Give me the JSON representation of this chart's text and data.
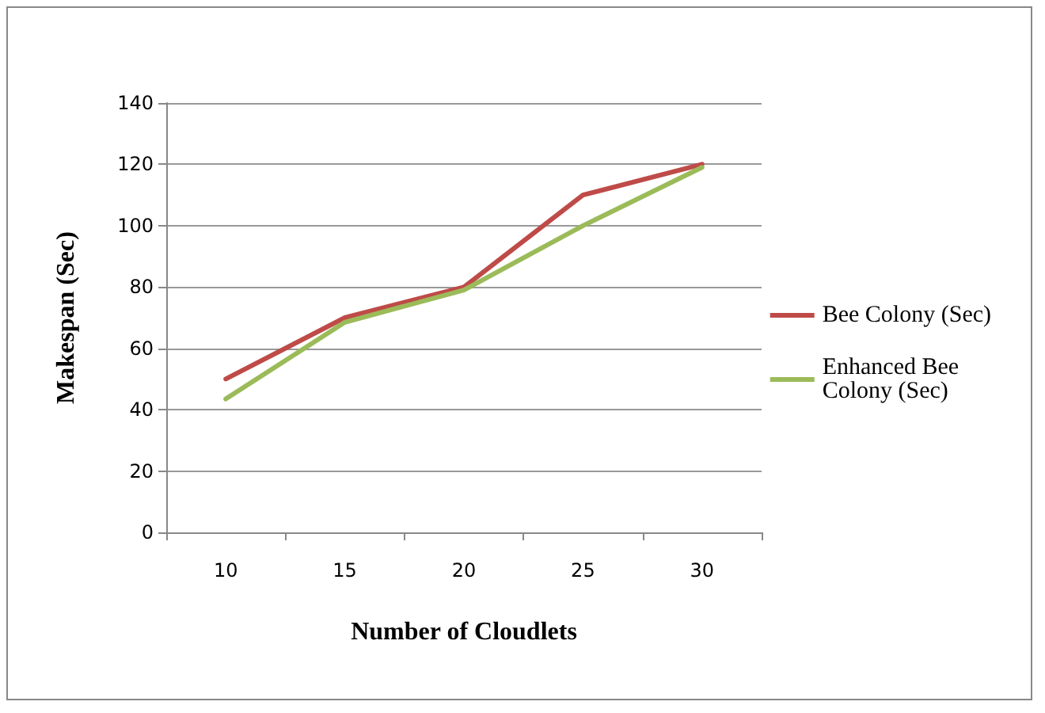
{
  "chart_data": {
    "type": "line",
    "xlabel": "Number of Cloudlets",
    "ylabel": "Makespan (Sec)",
    "categories": [
      "10",
      "15",
      "20",
      "25",
      "30"
    ],
    "series": [
      {
        "name": "Bee Colony (Sec)",
        "color": "#be4b48",
        "values": [
          50,
          70,
          80,
          110,
          120
        ]
      },
      {
        "name": "Enhanced Bee Colony (Sec)",
        "color": "#9bbb59",
        "values": [
          43.5,
          68.5,
          79,
          100,
          119
        ]
      }
    ],
    "ylim": [
      0,
      140
    ],
    "yticks": [
      0,
      20,
      40,
      60,
      80,
      100,
      120,
      140
    ],
    "grid": "y",
    "legend": "right",
    "marker": "none",
    "line_style": "solid"
  }
}
